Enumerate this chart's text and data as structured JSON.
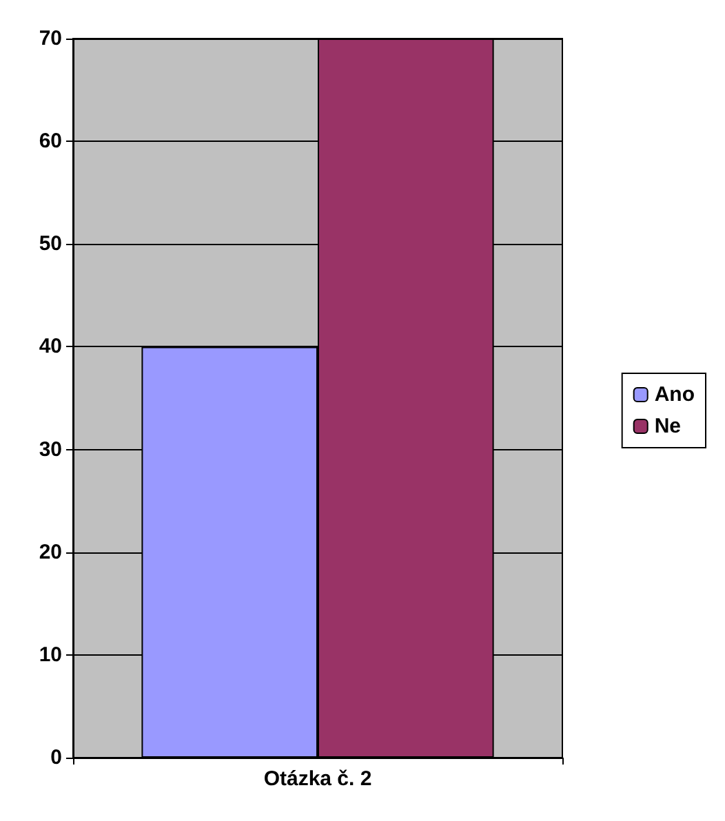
{
  "chart_data": {
    "type": "bar",
    "categories": [
      "Otázka č. 2"
    ],
    "series": [
      {
        "name": "Ano",
        "color": "#9999ff",
        "values": [
          40
        ]
      },
      {
        "name": "Ne",
        "color": "#993366",
        "values": [
          70
        ]
      }
    ],
    "ylim": [
      0,
      70
    ],
    "yticks": [
      0,
      10,
      20,
      30,
      40,
      50,
      60,
      70
    ],
    "grid": "y",
    "legend": "right"
  }
}
